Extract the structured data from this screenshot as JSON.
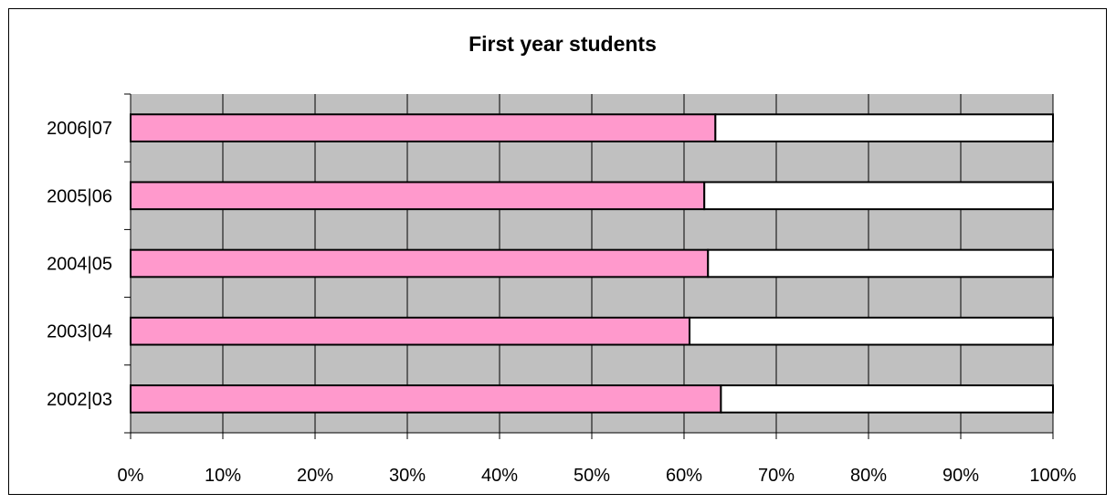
{
  "chart_data": {
    "type": "bar",
    "orientation": "horizontal",
    "stacked": true,
    "percent_stacked": true,
    "title": "First year students",
    "xlabel": "",
    "ylabel": "",
    "categories": [
      "2002|03",
      "2003|04",
      "2004|05",
      "2005|06",
      "2006|07"
    ],
    "series": [
      {
        "values": [
          64,
          60.6,
          62.6,
          62.2,
          63.4
        ],
        "color": "#ff99cc"
      },
      {
        "values": [
          36,
          39.4,
          37.4,
          37.8,
          36.6
        ],
        "color": "#ffffff"
      }
    ],
    "x_ticks": [
      "0%",
      "10%",
      "20%",
      "30%",
      "40%",
      "50%",
      "60%",
      "70%",
      "80%",
      "90%",
      "100%"
    ],
    "xlim": [
      0,
      100
    ],
    "grid": true,
    "legend": "none",
    "plot_background": "#c0c0c0"
  }
}
